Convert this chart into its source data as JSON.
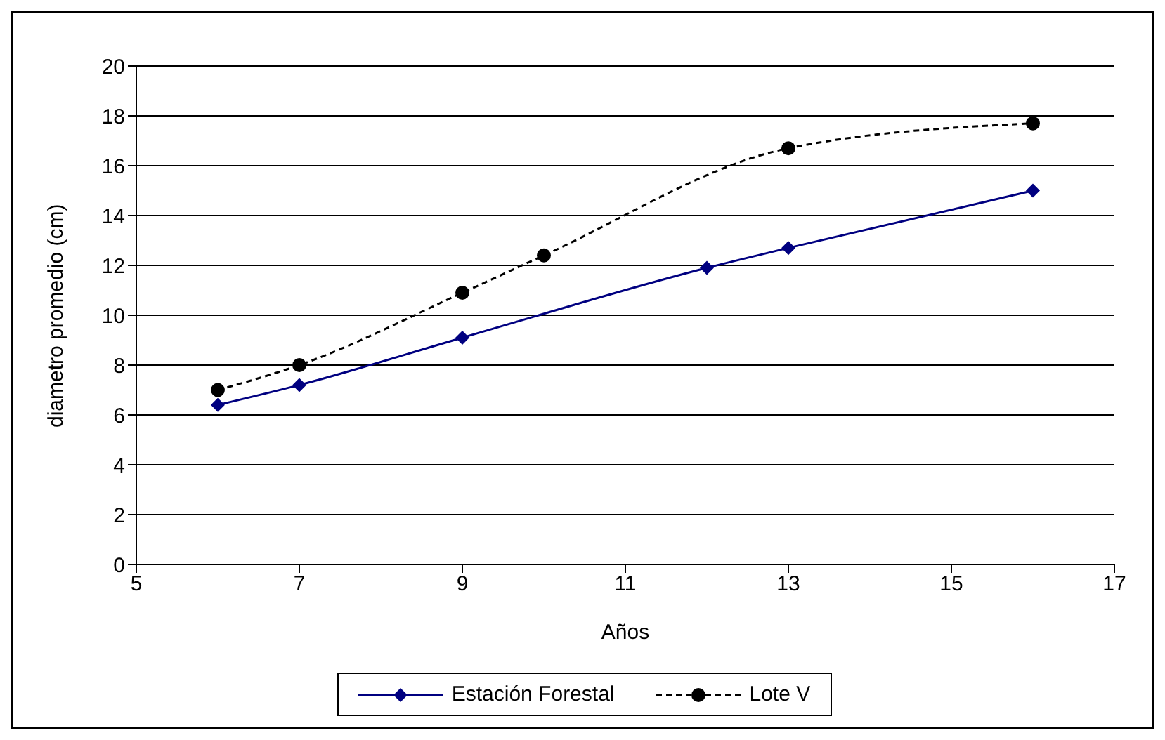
{
  "chart_data": {
    "type": "line",
    "xlabel": "Años",
    "ylabel": "diametro promedio (cm)",
    "xlim": [
      5,
      17
    ],
    "xticks": [
      5,
      7,
      9,
      11,
      13,
      15,
      17
    ],
    "ylim": [
      0,
      20
    ],
    "yticks": [
      0,
      2,
      4,
      6,
      8,
      10,
      12,
      14,
      16,
      18,
      20
    ],
    "grid": "y",
    "legend": "bottom",
    "series": [
      {
        "name": "Estación Forestal",
        "color": "#000080",
        "marker": "diamond",
        "line_style": "solid",
        "x": [
          6,
          7,
          9,
          12,
          13,
          16
        ],
        "values": [
          6.4,
          7.2,
          9.1,
          11.9,
          12.7,
          15.0
        ]
      },
      {
        "name": "Lote V",
        "color": "#000000",
        "marker": "circle",
        "line_style": "dashed",
        "x": [
          6,
          7,
          9,
          10,
          13,
          16
        ],
        "values": [
          7.0,
          8.0,
          10.9,
          12.4,
          16.7,
          17.7
        ]
      }
    ]
  }
}
